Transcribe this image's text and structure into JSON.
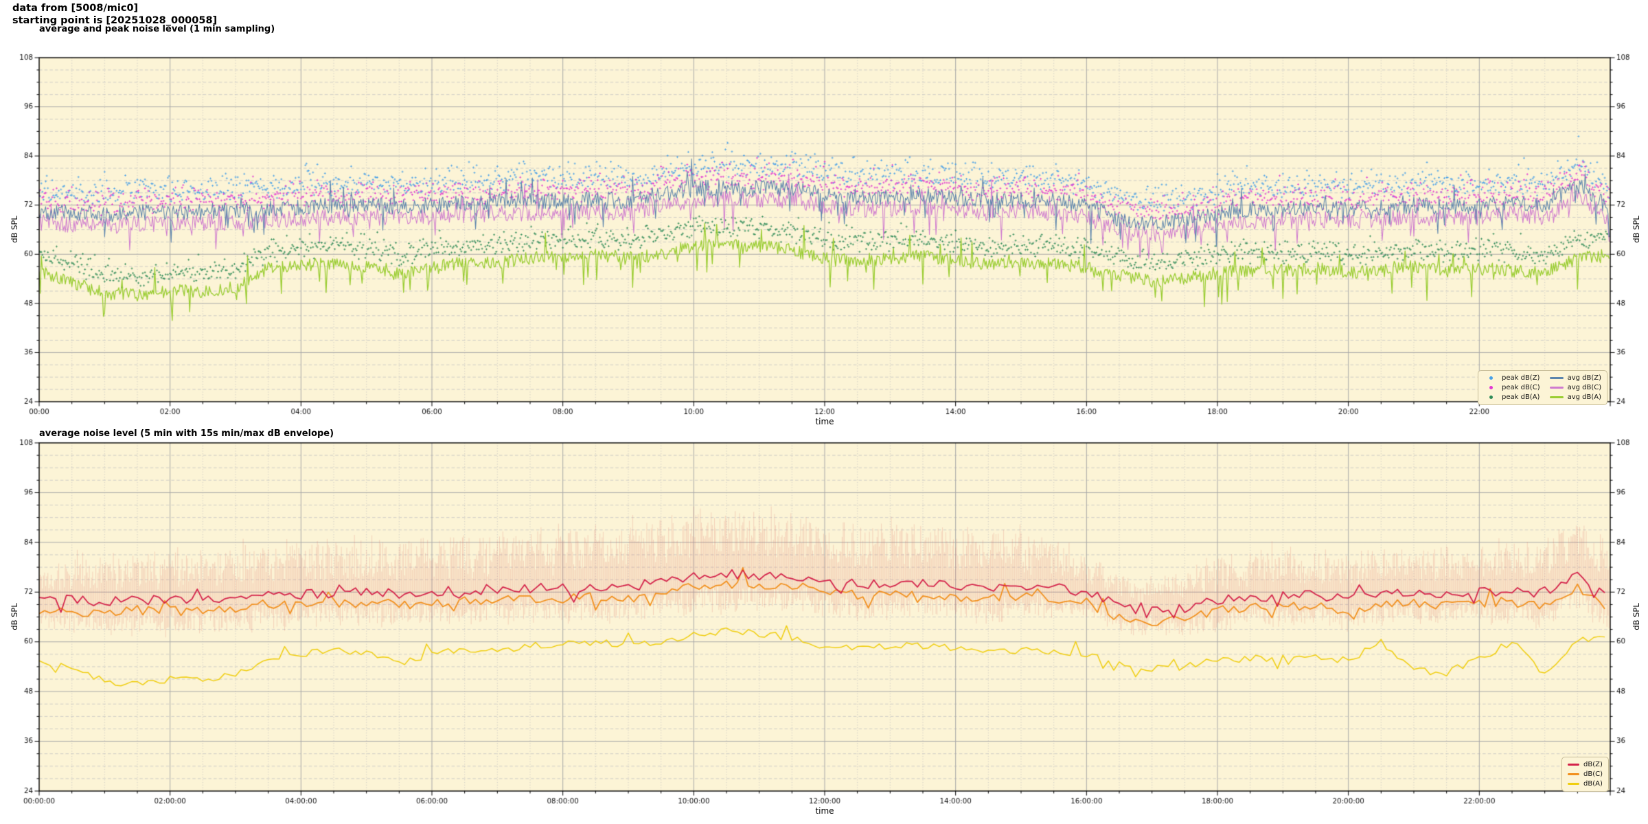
{
  "header": {
    "line1": "data from [5008/mic0]",
    "line2": "starting point is [20251028_000058]"
  },
  "theme": {
    "figure_bg": "#ffffff",
    "plot_bg": "#fcf4d6",
    "grid_major": "#a8a8a8",
    "grid_minor": "#c3c3c3",
    "frame": "#000000",
    "tick_label_color": "#111111",
    "legend_bg": "#fcf4d6",
    "legend_border": "#c7bd98",
    "envelope_color": "rgba(220,100,90,0.26)"
  },
  "chart_data": [
    {
      "type": "line+scatter",
      "title": "average and peak noise level (1 min sampling)",
      "xlabel": "time",
      "ylabel": "dB SPL",
      "ylim": [
        24,
        108
      ],
      "y_ticks": [
        24,
        36,
        48,
        60,
        72,
        84,
        96,
        108
      ],
      "y_minor_step": 3,
      "x_hours": [
        0,
        24
      ],
      "x_tick_hours": [
        0,
        2,
        4,
        6,
        8,
        10,
        12,
        14,
        16,
        18,
        20,
        22
      ],
      "x_tick_labels": [
        "00:00",
        "02:00",
        "04:00",
        "06:00",
        "08:00",
        "10:00",
        "12:00",
        "14:00",
        "16:00",
        "18:00",
        "20:00",
        "22:00"
      ],
      "x_minor_minutes": 30,
      "sample_minutes": 1,
      "keyframe_step_minutes": 30,
      "series": [
        {
          "name": "avg dB(Z)",
          "color": "#5b84ad",
          "jitter": 2.0,
          "keyframes": [
            70.5,
            70.0,
            69.8,
            70.2,
            70.0,
            70.4,
            70.8,
            71.2,
            71.5,
            71.8,
            72.0,
            71.6,
            72.0,
            72.4,
            72.8,
            73.0,
            73.0,
            73.4,
            73.0,
            74.8,
            76.0,
            76.4,
            76.0,
            76.2,
            74.6,
            74.0,
            74.0,
            74.4,
            73.6,
            73.0,
            73.4,
            73.0,
            72.0,
            68.5,
            67.5,
            68.2,
            70.0,
            71.0,
            71.0,
            71.4,
            71.0,
            71.4,
            72.0,
            71.6,
            72.0,
            72.4,
            72.0,
            77.0,
            71.0
          ]
        },
        {
          "name": "avg dB(C)",
          "color": "#cf7bcf",
          "jitter": 2.1,
          "keyframes": [
            67.7,
            67.2,
            67.0,
            67.4,
            67.2,
            67.6,
            68.0,
            68.4,
            68.7,
            69.0,
            69.2,
            68.8,
            69.2,
            69.6,
            70.0,
            70.2,
            70.2,
            70.6,
            70.2,
            72.0,
            73.2,
            73.6,
            73.2,
            73.4,
            71.8,
            71.2,
            71.2,
            71.6,
            70.8,
            70.2,
            70.6,
            70.2,
            69.2,
            65.7,
            64.7,
            65.4,
            67.2,
            68.2,
            68.2,
            68.6,
            68.2,
            68.6,
            69.2,
            68.8,
            69.2,
            69.6,
            69.2,
            74.2,
            68.2
          ]
        },
        {
          "name": "avg dB(A)",
          "color": "#9acd32",
          "jitter": 1.6,
          "keyframes": [
            56.0,
            53.0,
            50.5,
            50.0,
            51.0,
            51.0,
            52.0,
            56.5,
            57.0,
            58.0,
            57.0,
            55.0,
            57.0,
            58.0,
            58.0,
            59.0,
            59.5,
            60.0,
            59.0,
            60.0,
            62.0,
            62.5,
            62.0,
            61.0,
            59.0,
            58.5,
            59.0,
            59.5,
            58.5,
            57.5,
            58.0,
            57.5,
            57.0,
            55.0,
            53.5,
            54.0,
            55.5,
            56.0,
            56.0,
            56.5,
            55.5,
            56.0,
            57.0,
            56.0,
            56.5,
            56.0,
            55.5,
            59.0,
            60.0
          ]
        }
      ],
      "scatter": [
        {
          "name": "peak dB(Z)",
          "color": "#47a0e8",
          "series_ref": 0,
          "offset": 3.5,
          "spread": 5.0
        },
        {
          "name": "peak dB(C)",
          "color": "#e238d2",
          "series_ref": 1,
          "offset": 3.5,
          "spread": 4.8
        },
        {
          "name": "peak dB(A)",
          "color": "#2e8b57",
          "series_ref": 2,
          "offset": 3.0,
          "spread": 3.6
        }
      ]
    },
    {
      "type": "line+envelope",
      "title": "average noise level (5 min with 15s min/max dB envelope)",
      "xlabel": "time",
      "ylabel": "dB SPL",
      "ylim": [
        24,
        108
      ],
      "y_ticks": [
        24,
        36,
        48,
        60,
        72,
        84,
        96,
        108
      ],
      "y_minor_step": 3,
      "x_hours": [
        0,
        24
      ],
      "x_tick_hours": [
        0,
        2,
        4,
        6,
        8,
        10,
        12,
        14,
        16,
        18,
        20,
        22
      ],
      "x_tick_labels": [
        "00:00:00",
        "02:00:00",
        "04:00:00",
        "06:00:00",
        "08:00:00",
        "10:00:00",
        "12:00:00",
        "14:00:00",
        "16:00:00",
        "18:00:00",
        "20:00:00",
        "22:00:00"
      ],
      "x_minor_minutes": 30,
      "sample_minutes": 5,
      "keyframe_step_minutes": 30,
      "series": [
        {
          "name": "dB(Z)",
          "color": "#d4224a",
          "jitter": 1.2,
          "keyframes": [
            70.5,
            70.0,
            69.8,
            70.2,
            70.0,
            70.4,
            70.8,
            71.2,
            71.5,
            71.8,
            72.0,
            71.6,
            72.0,
            72.4,
            72.8,
            73.0,
            73.0,
            73.4,
            73.0,
            74.8,
            76.0,
            76.4,
            76.0,
            76.2,
            74.6,
            74.0,
            74.0,
            74.4,
            73.6,
            73.0,
            73.4,
            73.0,
            72.0,
            68.5,
            67.5,
            68.2,
            70.0,
            71.0,
            71.0,
            71.4,
            70.0,
            71.2,
            72.0,
            71.6,
            72.0,
            72.2,
            71.5,
            76.0,
            70.0
          ]
        },
        {
          "name": "dB(C)",
          "color": "#f2901d",
          "jitter": 1.2,
          "keyframes": [
            67.9,
            67.4,
            67.2,
            67.6,
            67.4,
            67.8,
            68.2,
            68.6,
            68.9,
            69.2,
            69.4,
            69.0,
            69.4,
            69.8,
            70.2,
            70.4,
            70.4,
            70.8,
            70.4,
            72.2,
            73.4,
            73.8,
            73.4,
            73.6,
            72.0,
            71.4,
            71.4,
            71.8,
            71.0,
            70.4,
            70.8,
            70.4,
            69.4,
            65.9,
            64.9,
            65.6,
            67.4,
            68.4,
            68.4,
            68.8,
            67.4,
            68.6,
            69.4,
            69.0,
            69.4,
            69.6,
            68.9,
            73.4,
            67.4
          ]
        },
        {
          "name": "dB(A)",
          "color": "#f0ce0f",
          "jitter": 0.85,
          "keyframes": [
            56.0,
            53.0,
            50.5,
            50.0,
            51.0,
            51.0,
            52.0,
            56.5,
            57.0,
            58.0,
            57.0,
            55.0,
            57.0,
            58.0,
            58.0,
            59.0,
            59.5,
            60.0,
            59.0,
            60.0,
            62.0,
            62.5,
            62.0,
            61.0,
            59.0,
            58.5,
            59.0,
            59.5,
            58.5,
            57.5,
            58.0,
            57.5,
            57.0,
            55.0,
            53.5,
            54.0,
            55.5,
            56.0,
            56.0,
            56.5,
            55.5,
            60.0,
            53.0,
            52.5,
            56.0,
            60.0,
            52.0,
            60.5,
            60.5
          ]
        }
      ],
      "envelope": {
        "series_ref": 0,
        "keyframe_step_minutes": 60,
        "up_keyframes": [
          5,
          8,
          8,
          9,
          9,
          10,
          10,
          10,
          11,
          11,
          12,
          12,
          11,
          11,
          11,
          10,
          6,
          5,
          8,
          8,
          8,
          8,
          8,
          10,
          10
        ],
        "down_keyframes": [
          5,
          6,
          6,
          6,
          6,
          6,
          6,
          6,
          6,
          6,
          7,
          7,
          6,
          6,
          6,
          6,
          4,
          4,
          5,
          5,
          5,
          5,
          5,
          6,
          6
        ]
      }
    }
  ]
}
